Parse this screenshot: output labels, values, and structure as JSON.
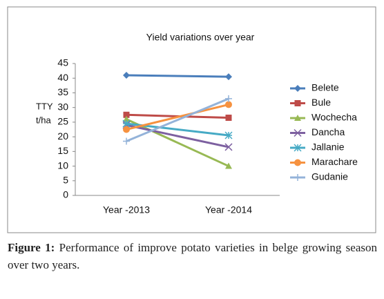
{
  "chart_data": {
    "type": "line",
    "title": "Yield variations over year",
    "ylabel": [
      "TTY",
      "t/ha"
    ],
    "categories": [
      "Year  -2013",
      "Year  -2014"
    ],
    "ylim": [
      0,
      45
    ],
    "yticks": [
      0,
      5,
      10,
      15,
      20,
      25,
      30,
      35,
      40,
      45
    ],
    "grid": false,
    "legend": "right",
    "series": [
      {
        "name": "Belete",
        "color": "#4a7ebb",
        "marker": "diamond",
        "values": [
          41,
          40.5
        ]
      },
      {
        "name": "Bule",
        "color": "#be4b48",
        "marker": "square",
        "values": [
          27.5,
          26.5
        ]
      },
      {
        "name": "Wochecha",
        "color": "#98b954",
        "marker": "triangle",
        "values": [
          26,
          10
        ]
      },
      {
        "name": "Dancha",
        "color": "#7d60a0",
        "marker": "x",
        "values": [
          24,
          16.5
        ]
      },
      {
        "name": "Jallanie",
        "color": "#46aac5",
        "marker": "star",
        "values": [
          24.5,
          20.5
        ]
      },
      {
        "name": "Marachare",
        "color": "#f69240",
        "marker": "circle",
        "values": [
          22.5,
          31
        ]
      },
      {
        "name": "Gudanie",
        "color": "#94b3d9",
        "marker": "plus",
        "values": [
          18.5,
          33
        ]
      }
    ]
  },
  "caption": {
    "label": "Figure 1:",
    "text": "Performance of improve potato varieties in belge growing season over two years."
  }
}
